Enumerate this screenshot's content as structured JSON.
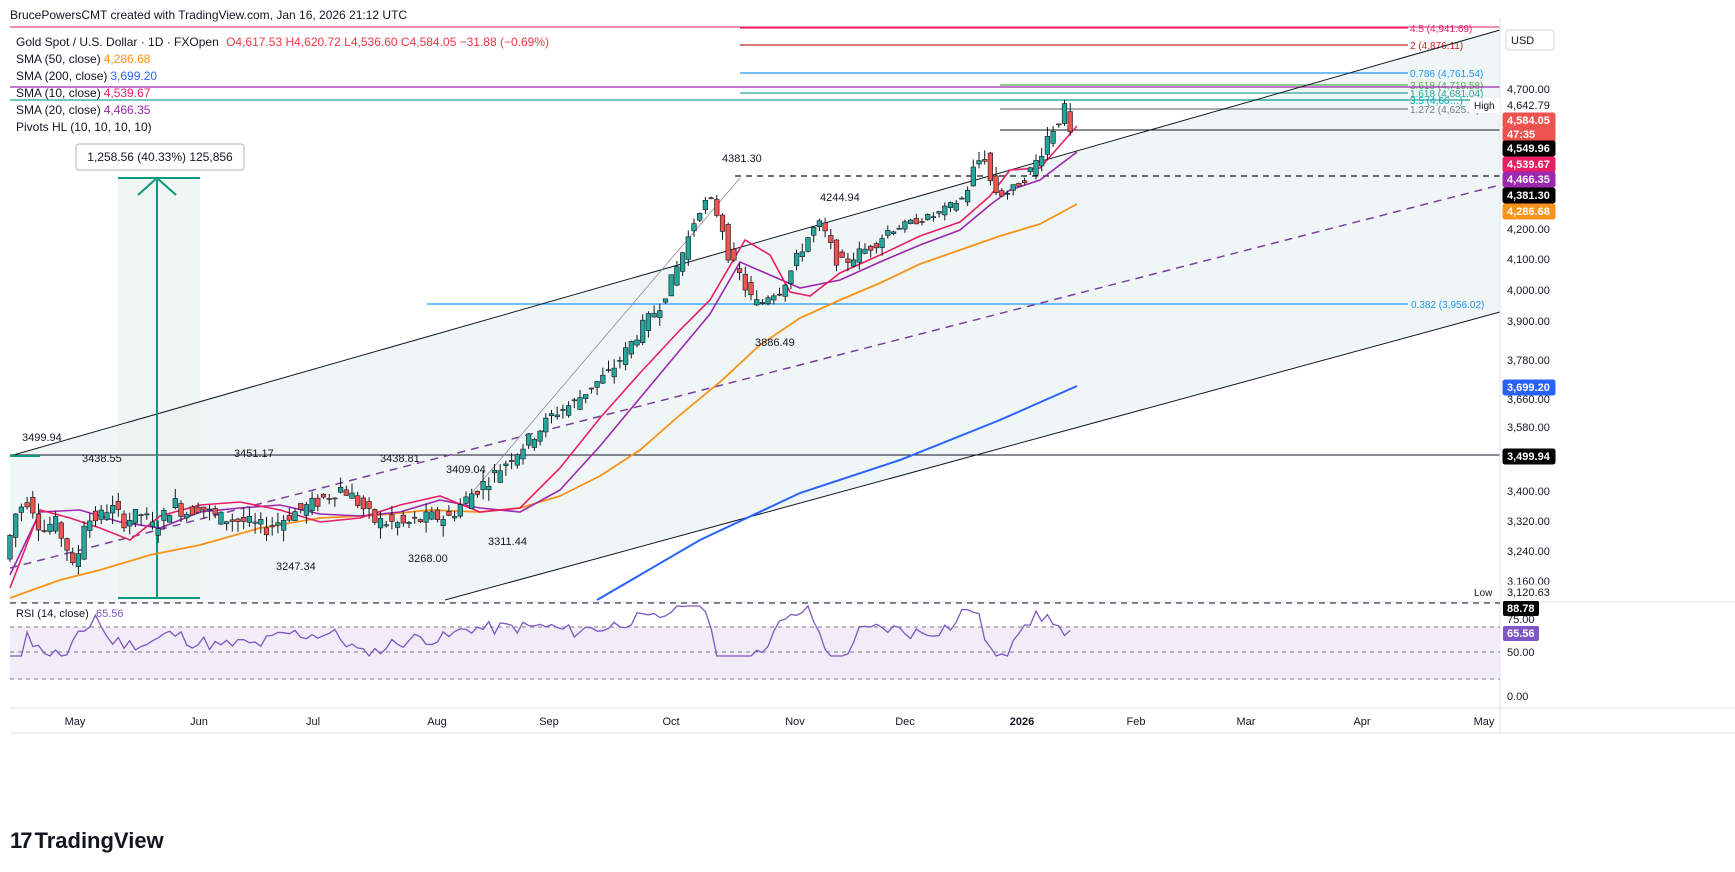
{
  "header": {
    "creator": "BrucePowersCMT created with TradingView.com, Jan 16, 2026 21:12 UTC",
    "symbol": "Gold Spot / U.S. Dollar · 1D · FXOpen",
    "ohlc": "O4,617.53 H4,620.72 L4,536.60 C4,584.05 −31.88 (−0.69%)",
    "ohlc_color": "#f23645"
  },
  "legend": [
    {
      "label": "SMA (50, close)",
      "value": "4,286.68",
      "color": "#f7931a"
    },
    {
      "label": "SMA (200, close)",
      "value": "3,699.20",
      "color": "#2962ff"
    },
    {
      "label": "SMA (10, close)",
      "value": "4,539.67",
      "color": "#e91e63"
    },
    {
      "label": "SMA (20, close)",
      "value": "4,466.35",
      "color": "#9c27b0"
    },
    {
      "label": "Pivots HL (10, 10, 10, 10)",
      "value": "",
      "color": "#131722"
    }
  ],
  "currency": "USD",
  "logo": "TradingView",
  "measure": "1,258.56 (40.33%) 125,856",
  "chart_data": {
    "type": "candlestick",
    "x_labels": [
      "May",
      "Jun",
      "Jul",
      "Aug",
      "Sep",
      "Oct",
      "Nov",
      "Dec",
      "2026",
      "Feb",
      "Mar",
      "Apr",
      "May"
    ],
    "y_ticks": [
      "4,700.00",
      "4,200.00",
      "4,100.00",
      "4,000.00",
      "3,900.00",
      "3,780.00",
      "3,660.00",
      "3,580.00",
      "3,400.00",
      "3,320.00",
      "3,240.00",
      "3,160.00"
    ],
    "price_labels": [
      {
        "text": "4,642.79",
        "bg": "#ffffff",
        "fg": "#131722",
        "pre": "High"
      },
      {
        "text": "4,584.05",
        "bg": "#ef5350",
        "fg": "#ffffff"
      },
      {
        "text": "47:35",
        "bg": "#ef5350",
        "fg": "#ffffff"
      },
      {
        "text": "4,549.96",
        "bg": "#000000",
        "fg": "#ffffff"
      },
      {
        "text": "4,539.67",
        "bg": "#e91e63",
        "fg": "#ffffff"
      },
      {
        "text": "4,466.35",
        "bg": "#9c27b0",
        "fg": "#ffffff"
      },
      {
        "text": "4,381.30",
        "bg": "#000000",
        "fg": "#ffffff"
      },
      {
        "text": "4,286.68",
        "bg": "#f7931a",
        "fg": "#ffffff"
      },
      {
        "text": "3,699.20",
        "bg": "#2962ff",
        "fg": "#ffffff"
      },
      {
        "text": "3,499.94",
        "bg": "#000000",
        "fg": "#ffffff"
      },
      {
        "text": "3,120.63",
        "bg": "#ffffff",
        "fg": "#131722",
        "pre": "Low"
      }
    ],
    "fib_levels": [
      {
        "label": "4.5 (4,941.69)",
        "color": "#e91e63"
      },
      {
        "label": "2 (4,876.11)",
        "color": "#c62828"
      },
      {
        "label": "0.786 (4,761.54)",
        "color": "#2196f3"
      },
      {
        "label": "3.618 (4,719.58)",
        "color": "#4caf50"
      },
      {
        "label": "1.618 (4,681.04)",
        "color": "#26a69a"
      },
      {
        "label": "3.5 (4,66…)",
        "color": "#00acc1"
      },
      {
        "label": "1.272 (4,625…)",
        "color": "#787b86"
      },
      {
        "label": "0.382 (3,956.02)",
        "color": "#2196f3"
      }
    ],
    "pivots": [
      "3499.94",
      "3438.55",
      "3451.17",
      "3438.81",
      "3409.04",
      "3247.34",
      "3268.00",
      "3311.44",
      "4381.30",
      "4244.94",
      "3886.49"
    ],
    "sma": [
      {
        "name": "SMA (50, close)",
        "color": "#f7931a"
      },
      {
        "name": "SMA (200, close)",
        "color": "#2962ff"
      },
      {
        "name": "SMA (10, close)",
        "color": "#e91e63"
      },
      {
        "name": "SMA (20, close)",
        "color": "#9c27b0"
      }
    ],
    "ohlc": {
      "open": 4617.53,
      "high": 4620.72,
      "low": 4536.6,
      "close": 4584.05,
      "change": -31.88,
      "change_pct": -0.69
    },
    "candle_colors": {
      "up": "#26a69a",
      "down": "#ef5350"
    },
    "rsi": {
      "label": "RSI (14, close)",
      "value": "65.56",
      "ticks": [
        "75.00",
        "50.00",
        "0.00"
      ],
      "labels": [
        {
          "text": "88.78",
          "bg": "#000000",
          "fg": "#ffffff"
        },
        {
          "text": "65.56",
          "bg": "#7e57c2",
          "fg": "#ffffff"
        }
      ],
      "color": "#7e57c2"
    }
  }
}
